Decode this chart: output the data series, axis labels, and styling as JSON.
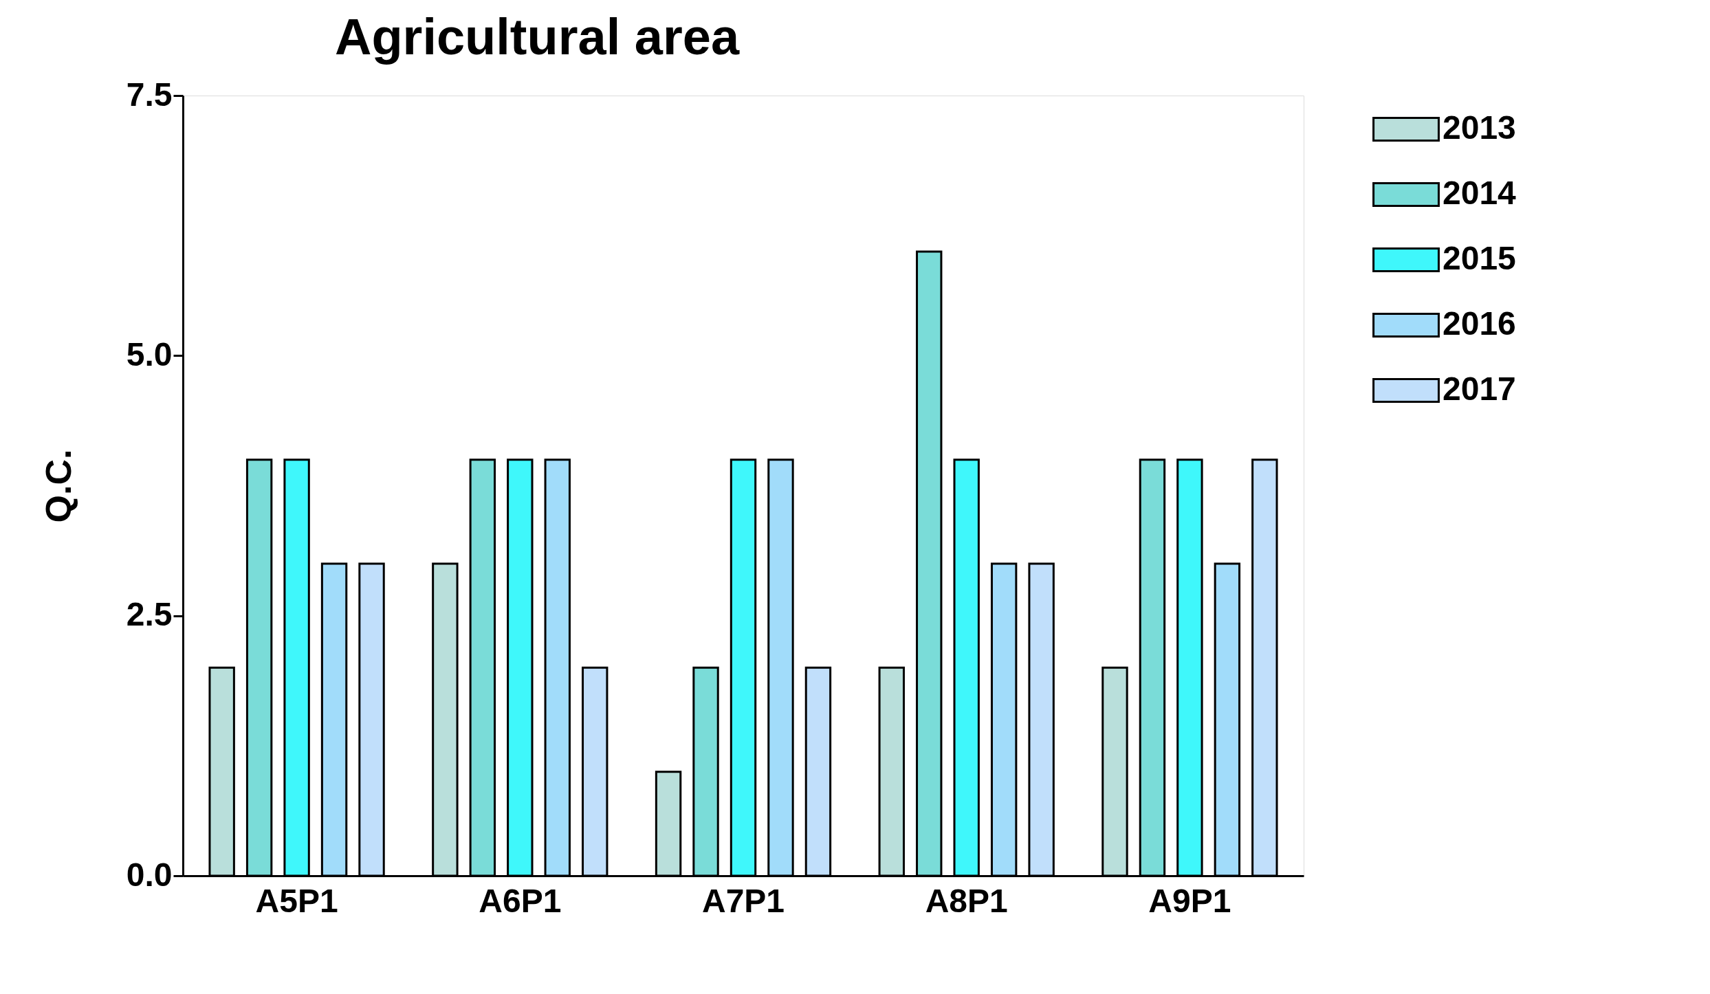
{
  "chart_data": {
    "type": "bar",
    "title": "Agricultural area",
    "ylabel": "Q.C.",
    "categories": [
      "A5P1",
      "A6P1",
      "A7P1",
      "A8P1",
      "A9P1"
    ],
    "series": [
      {
        "name": "2013",
        "color": "#b9dfdb",
        "values": [
          2,
          3,
          1,
          2,
          2
        ]
      },
      {
        "name": "2014",
        "color": "#7adcd8",
        "values": [
          4,
          4,
          2,
          6,
          4
        ]
      },
      {
        "name": "2015",
        "color": "#3ff7fb",
        "values": [
          4,
          4,
          4,
          4,
          4
        ]
      },
      {
        "name": "2016",
        "color": "#a1dcfa",
        "values": [
          3,
          4,
          4,
          3,
          3
        ]
      },
      {
        "name": "2017",
        "color": "#c1dffb",
        "values": [
          3,
          2,
          2,
          3,
          4
        ]
      }
    ],
    "ylim": [
      0,
      7.5
    ],
    "yticks": [
      {
        "value": 0,
        "label": "0.0"
      },
      2.5,
      {
        "value": 5,
        "label": "5.0"
      },
      7.5
    ],
    "grid": false,
    "legend": "top right"
  }
}
